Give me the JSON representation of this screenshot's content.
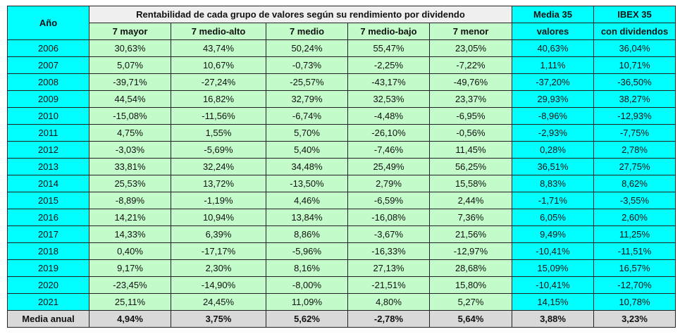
{
  "header": {
    "year_label": "Año",
    "group_title": "Rentabilidad de cada grupo de valores según su rendimiento por dividendo",
    "groups": [
      "7 mayor",
      "7 medio-alto",
      "7 medio",
      "7 medio-bajo",
      "7 menor"
    ],
    "media_line1": "Media 35",
    "media_line2": "valores",
    "ibex_line1": "IBEX 35",
    "ibex_line2": "con dividendos"
  },
  "rows": [
    {
      "year": "2006",
      "values": [
        "30,63%",
        "43,74%",
        "50,24%",
        "55,47%",
        "23,05%",
        "40,63%",
        "36,04%"
      ]
    },
    {
      "year": "2007",
      "values": [
        "5,07%",
        "10,67%",
        "-0,73%",
        "-2,25%",
        "-7,22%",
        "1,11%",
        "10,71%"
      ]
    },
    {
      "year": "2008",
      "values": [
        "-39,71%",
        "-27,24%",
        "-25,57%",
        "-43,17%",
        "-49,76%",
        "-37,20%",
        "-36,50%"
      ]
    },
    {
      "year": "2009",
      "values": [
        "44,54%",
        "16,82%",
        "32,79%",
        "32,53%",
        "23,37%",
        "29,93%",
        "38,27%"
      ]
    },
    {
      "year": "2010",
      "values": [
        "-15,08%",
        "-11,56%",
        "-6,74%",
        "-4,48%",
        "-6,95%",
        "-8,96%",
        "-12,93%"
      ]
    },
    {
      "year": "2011",
      "values": [
        "4,75%",
        "1,55%",
        "5,70%",
        "-26,10%",
        "-0,56%",
        "-2,93%",
        "-7,75%"
      ]
    },
    {
      "year": "2012",
      "values": [
        "-3,03%",
        "-5,69%",
        "5,40%",
        "-7,46%",
        "11,45%",
        "0,28%",
        "2,78%"
      ]
    },
    {
      "year": "2013",
      "values": [
        "33,81%",
        "32,24%",
        "34,48%",
        "25,49%",
        "56,25%",
        "36,51%",
        "27,75%"
      ]
    },
    {
      "year": "2014",
      "values": [
        "25,53%",
        "13,72%",
        "-13,50%",
        "2,79%",
        "15,58%",
        "8,83%",
        "8,62%"
      ]
    },
    {
      "year": "2015",
      "values": [
        "-8,89%",
        "-1,19%",
        "4,46%",
        "-6,59%",
        "2,44%",
        "-1,71%",
        "-3,55%"
      ]
    },
    {
      "year": "2016",
      "values": [
        "14,21%",
        "10,94%",
        "13,84%",
        "-16,08%",
        "7,36%",
        "6,05%",
        "2,60%"
      ]
    },
    {
      "year": "2017",
      "values": [
        "14,33%",
        "6,39%",
        "8,86%",
        "-3,67%",
        "21,56%",
        "9,49%",
        "11,25%"
      ]
    },
    {
      "year": "2018",
      "values": [
        "0,40%",
        "-17,17%",
        "-5,96%",
        "-16,33%",
        "-12,97%",
        "-10,41%",
        "-11,51%"
      ]
    },
    {
      "year": "2019",
      "values": [
        "9,17%",
        "2,30%",
        "8,16%",
        "27,13%",
        "28,68%",
        "15,09%",
        "16,57%"
      ]
    },
    {
      "year": "2020",
      "values": [
        "-23,45%",
        "-14,90%",
        "-8,00%",
        "-21,51%",
        "15,80%",
        "-10,41%",
        "-12,70%"
      ]
    },
    {
      "year": "2021",
      "values": [
        "25,11%",
        "24,45%",
        "11,09%",
        "4,80%",
        "5,27%",
        "14,15%",
        "10,78%"
      ]
    }
  ],
  "footer": {
    "label": "Media anual",
    "values": [
      "4,94%",
      "3,75%",
      "5,62%",
      "-2,78%",
      "5,64%",
      "3,88%",
      "3,23%"
    ]
  }
}
